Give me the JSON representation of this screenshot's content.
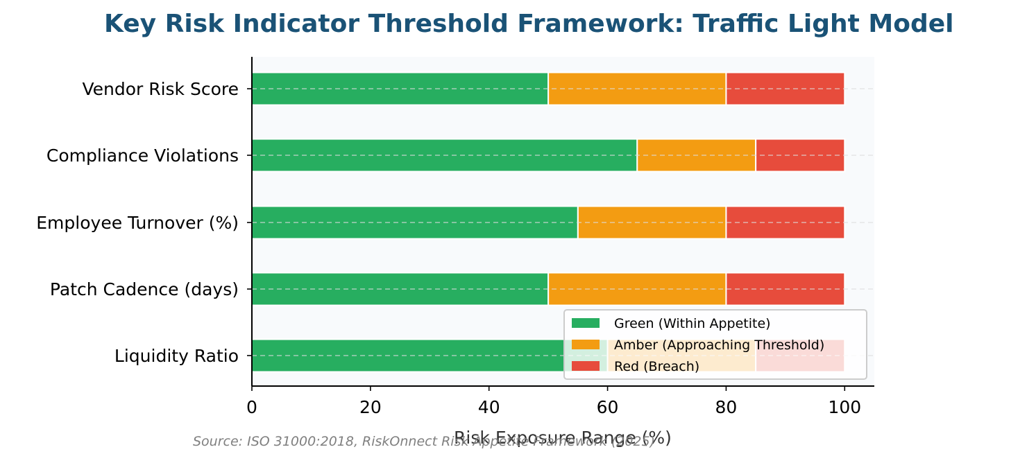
{
  "chart_data": {
    "type": "bar",
    "orientation": "horizontal",
    "stacked": true,
    "title": "Key Risk Indicator Threshold Framework: Traffic Light Model",
    "xlabel": "Risk Exposure Range (%)",
    "ylabel": "",
    "xlim": [
      0,
      105
    ],
    "xticks": [
      0,
      20,
      40,
      60,
      80,
      100
    ],
    "categories": [
      "Vendor Risk Score",
      "Compliance Violations",
      "Employee Turnover (%)",
      "Patch Cadence (days)",
      "Liquidity Ratio"
    ],
    "series": [
      {
        "name": "Green (Within Appetite)",
        "color": "#27ae60",
        "values": [
          50,
          65,
          55,
          50,
          60
        ]
      },
      {
        "name": "Amber (Approaching Threshold)",
        "color": "#f39c12",
        "values": [
          30,
          20,
          25,
          30,
          25
        ]
      },
      {
        "name": "Red (Breach)",
        "color": "#e74c3c",
        "values": [
          20,
          15,
          20,
          20,
          15
        ]
      }
    ],
    "grid": "x dashed",
    "legend_position": "lower-right",
    "source": "Source: ISO 31000:2018, RiskOnnect Risk Appetite Framework (2025)"
  }
}
